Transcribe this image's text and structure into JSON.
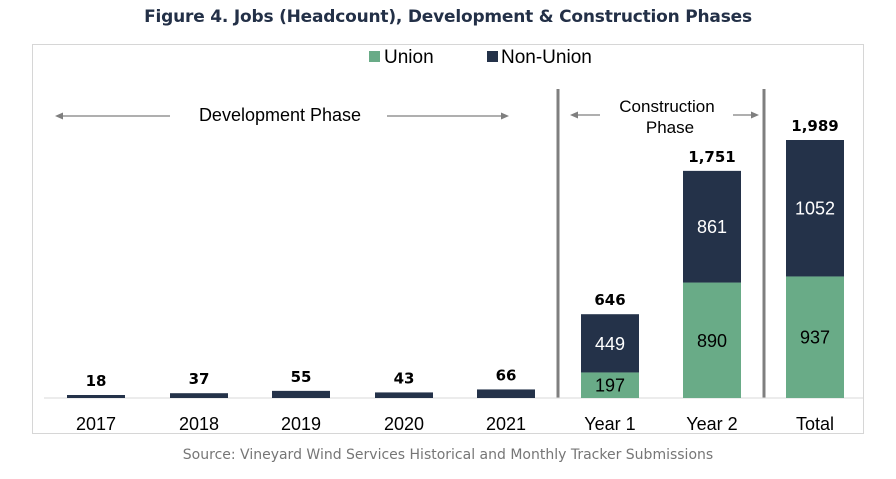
{
  "title": "Figure 4. Jobs (Headcount), Development & Construction Phases",
  "source": "Source: Vineyard Wind Services Historical and Monthly Tracker Submissions",
  "colors": {
    "union": "#69ab87",
    "non_union": "#243249",
    "divider": "#7f7f7f",
    "arrow": "#7f7f7f",
    "axis": "#d9d9d9",
    "text": "#000000"
  },
  "annotations": {
    "development_phase": "Development Phase",
    "construction_phase_line1": "Construction",
    "construction_phase_line2": "Phase"
  },
  "chart_data": {
    "type": "bar",
    "stacked": true,
    "title": "Figure 4. Jobs (Headcount), Development & Construction Phases",
    "xlabel": "",
    "ylabel": "",
    "ylim": [
      0,
      2000
    ],
    "grid": false,
    "legend": {
      "placement": "top-center",
      "entries": [
        "Union",
        "Non-Union"
      ]
    },
    "categories": [
      "2017",
      "2018",
      "2019",
      "2020",
      "2021",
      "Year 1",
      "Year 2",
      "Total"
    ],
    "series": [
      {
        "name": "Union",
        "values": [
          0,
          0,
          0,
          0,
          0,
          197,
          890,
          937
        ],
        "labels": [
          "",
          "",
          "",
          "",
          "",
          "197",
          "890",
          "937"
        ]
      },
      {
        "name": "Non-Union",
        "values": [
          18,
          37,
          55,
          43,
          66,
          449,
          861,
          1052
        ],
        "labels": [
          "",
          "",
          "",
          "",
          "",
          "449",
          "861",
          "1052"
        ]
      }
    ],
    "totals": [
      18,
      37,
      55,
      43,
      66,
      646,
      1751,
      1989
    ],
    "total_labels": [
      "18",
      "37",
      "55",
      "43",
      "66",
      "646",
      "1,751",
      "1,989"
    ],
    "phases": [
      {
        "name": "Development Phase",
        "categories": [
          "2017",
          "2018",
          "2019",
          "2020",
          "2021"
        ]
      },
      {
        "name": "Construction Phase",
        "categories": [
          "Year 1",
          "Year 2"
        ]
      }
    ]
  }
}
